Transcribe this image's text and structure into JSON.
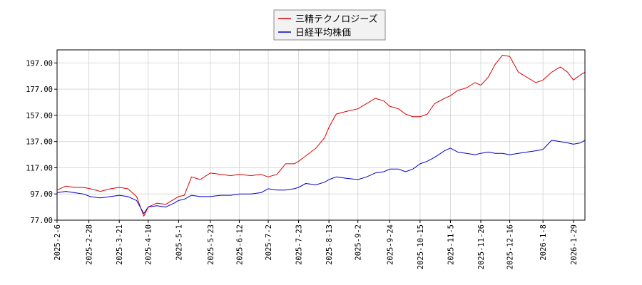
{
  "chart_data": {
    "type": "line",
    "title": "",
    "xlabel": "",
    "ylabel": "",
    "ylim": [
      77,
      207
    ],
    "yticks": [
      77,
      97,
      117,
      137,
      157,
      177,
      197
    ],
    "ytick_labels": [
      "77.00",
      "97.00",
      "117.00",
      "137.00",
      "157.00",
      "177.00",
      "197.00"
    ],
    "xlim": [
      "2025-02-06",
      "2026-02-06"
    ],
    "xticks": [
      "2025-02-06",
      "2025-02-28",
      "2025-03-21",
      "2025-04-10",
      "2025-05-01",
      "2025-05-23",
      "2025-06-12",
      "2025-07-02",
      "2025-07-23",
      "2025-08-13",
      "2025-09-02",
      "2025-09-24",
      "2025-10-15",
      "2025-11-05",
      "2025-11-26",
      "2025-12-16",
      "2026-01-08",
      "2026-01-29"
    ],
    "xtick_labels": [
      "2025-2-6",
      "2025-2-28",
      "2025-3-21",
      "2025-4-10",
      "2025-5-1",
      "2025-5-23",
      "2025-6-12",
      "2025-7-2",
      "2025-7-23",
      "2025-8-13",
      "2025-9-2",
      "2025-9-24",
      "2025-10-15",
      "2025-11-5",
      "2025-11-26",
      "2025-12-16",
      "2026-1-8",
      "2026-1-29"
    ],
    "grid": true,
    "legend_position": "top-center",
    "series": [
      {
        "name": "三精テクノロジーズ",
        "color": "#dd0000",
        "x": [
          "2025-02-06",
          "2025-02-12",
          "2025-02-18",
          "2025-02-24",
          "2025-03-01",
          "2025-03-08",
          "2025-03-15",
          "2025-03-21",
          "2025-03-27",
          "2025-04-02",
          "2025-04-07",
          "2025-04-10",
          "2025-04-16",
          "2025-04-22",
          "2025-04-28",
          "2025-05-01",
          "2025-05-05",
          "2025-05-10",
          "2025-05-16",
          "2025-05-23",
          "2025-05-30",
          "2025-06-06",
          "2025-06-12",
          "2025-06-20",
          "2025-06-27",
          "2025-07-02",
          "2025-07-08",
          "2025-07-14",
          "2025-07-20",
          "2025-07-23",
          "2025-07-28",
          "2025-08-04",
          "2025-08-10",
          "2025-08-13",
          "2025-08-18",
          "2025-08-25",
          "2025-09-02",
          "2025-09-08",
          "2025-09-14",
          "2025-09-20",
          "2025-09-24",
          "2025-09-30",
          "2025-10-05",
          "2025-10-10",
          "2025-10-15",
          "2025-10-20",
          "2025-10-25",
          "2025-11-01",
          "2025-11-05",
          "2025-11-10",
          "2025-11-16",
          "2025-11-22",
          "2025-11-26",
          "2025-12-01",
          "2025-12-06",
          "2025-12-11",
          "2025-12-16",
          "2025-12-22",
          "2025-12-28",
          "2026-01-03",
          "2026-01-08",
          "2026-01-14",
          "2026-01-20",
          "2026-01-25",
          "2026-01-29",
          "2026-02-03",
          "2026-02-06"
        ],
        "y": [
          100,
          103,
          102,
          102,
          101,
          99,
          101,
          102,
          101,
          95,
          80,
          87,
          90,
          89,
          93,
          95,
          96,
          110,
          108,
          113,
          112,
          111,
          112,
          111,
          112,
          110,
          112,
          120,
          120,
          122,
          126,
          132,
          140,
          148,
          158,
          160,
          162,
          166,
          170,
          168,
          164,
          162,
          158,
          156,
          156,
          158,
          166,
          170,
          172,
          176,
          178,
          182,
          180,
          186,
          196,
          203,
          202,
          190,
          186,
          182,
          184,
          190,
          194,
          190,
          184,
          188,
          190
        ]
      },
      {
        "name": "日経平均株価",
        "color": "#0000cc",
        "x": [
          "2025-02-06",
          "2025-02-12",
          "2025-02-18",
          "2025-02-24",
          "2025-03-01",
          "2025-03-08",
          "2025-03-15",
          "2025-03-21",
          "2025-03-27",
          "2025-04-02",
          "2025-04-07",
          "2025-04-10",
          "2025-04-16",
          "2025-04-22",
          "2025-04-28",
          "2025-05-01",
          "2025-05-05",
          "2025-05-10",
          "2025-05-16",
          "2025-05-23",
          "2025-05-30",
          "2025-06-06",
          "2025-06-12",
          "2025-06-20",
          "2025-06-27",
          "2025-07-02",
          "2025-07-08",
          "2025-07-14",
          "2025-07-20",
          "2025-07-23",
          "2025-07-28",
          "2025-08-04",
          "2025-08-10",
          "2025-08-13",
          "2025-08-18",
          "2025-08-25",
          "2025-09-02",
          "2025-09-08",
          "2025-09-14",
          "2025-09-20",
          "2025-09-24",
          "2025-09-30",
          "2025-10-05",
          "2025-10-10",
          "2025-10-15",
          "2025-10-20",
          "2025-10-25",
          "2025-11-01",
          "2025-11-05",
          "2025-11-10",
          "2025-11-16",
          "2025-11-22",
          "2025-11-26",
          "2025-12-01",
          "2025-12-06",
          "2025-12-11",
          "2025-12-16",
          "2025-12-22",
          "2025-12-28",
          "2026-01-03",
          "2026-01-08",
          "2026-01-14",
          "2026-01-20",
          "2026-01-25",
          "2026-01-29",
          "2026-02-03",
          "2026-02-06"
        ],
        "y": [
          98,
          99,
          98,
          97,
          95,
          94,
          95,
          96,
          95,
          92,
          82,
          87,
          88,
          87,
          90,
          92,
          93,
          96,
          95,
          95,
          96,
          96,
          97,
          97,
          98,
          101,
          100,
          100,
          101,
          102,
          105,
          104,
          106,
          108,
          110,
          109,
          108,
          110,
          113,
          114,
          116,
          116,
          114,
          116,
          120,
          122,
          125,
          130,
          132,
          129,
          128,
          127,
          128,
          129,
          128,
          128,
          127,
          128,
          129,
          130,
          131,
          138,
          137,
          136,
          135,
          136,
          138
        ]
      }
    ]
  }
}
